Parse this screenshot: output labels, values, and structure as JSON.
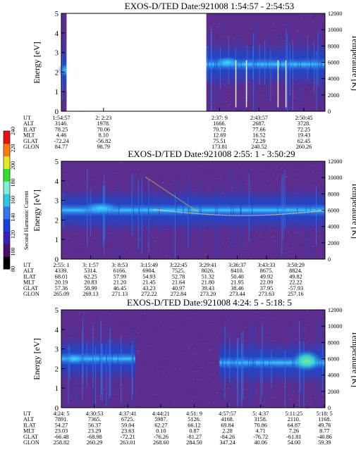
{
  "panels": [
    {
      "title": "EXOS-D/TED   Date:921008  1:54:57 - 2:54:53",
      "gap": [
        0.02,
        0.55
      ],
      "ionBand": {
        "x0": 0.0,
        "x1": 0.02,
        "e": 2.1
      },
      "rightBand": {
        "x0": 0.55,
        "x1": 1.0,
        "e": 2.4
      },
      "ticks": [
        {
          "f": 0.0,
          "lines": [
            "1:54:57",
            "3146.",
            "78.25",
            "4.46",
            "-72.24",
            "84.77"
          ]
        },
        {
          "f": 0.16,
          "lines": [
            "2: 2:23",
            "1978.",
            "70.06",
            "8.10",
            "-56.82",
            "98.79"
          ]
        },
        {
          "f": 0.6,
          "lines": [
            "2:37: 9",
            "1666.",
            "70.72",
            "12.69",
            "75.51",
            "173.81"
          ]
        },
        {
          "f": 0.75,
          "lines": [
            "2:43:57",
            "2687.",
            "77.66",
            "16.52",
            "72.29",
            "240.52"
          ]
        },
        {
          "f": 0.92,
          "lines": [
            "2:50:45",
            "3728.",
            "72.25",
            "19.43",
            "62.45",
            "260.26"
          ]
        }
      ]
    },
    {
      "title": "EXOS-D/TED   Date:921008  2:55: 1 - 3:50:29",
      "gap": null,
      "ionBand": {
        "x0": 0.0,
        "x1": 1.0,
        "e": 2.5
      },
      "rightBand": null,
      "ticks": [
        {
          "f": 0.0,
          "lines": [
            "2:55: 1",
            "4339.",
            "68.01",
            "20.19",
            "57.36",
            "265.09"
          ]
        },
        {
          "f": 0.111,
          "lines": [
            "3: 1:57",
            "5314.",
            "62.25",
            "20.83",
            "50.99",
            "269.13"
          ]
        },
        {
          "f": 0.222,
          "lines": [
            "3: 8:53",
            "6166.",
            "57.99",
            "21.20",
            "46.45",
            "271.13"
          ]
        },
        {
          "f": 0.333,
          "lines": [
            "3:15:49",
            "6904.",
            "54.93",
            "21.45",
            "43.23",
            "272.22"
          ]
        },
        {
          "f": 0.444,
          "lines": [
            "3:22:45",
            "7525.",
            "52.78",
            "21.64",
            "40.97",
            "272.84"
          ]
        },
        {
          "f": 0.556,
          "lines": [
            "3:29:41",
            "8026.",
            "51.32",
            "21.80",
            "39.43",
            "273.20"
          ]
        },
        {
          "f": 0.667,
          "lines": [
            "3:36:37",
            "8410.",
            "50.40",
            "21.95",
            "38.46",
            "273.44"
          ]
        },
        {
          "f": 0.778,
          "lines": [
            "3:43:33",
            "8675.",
            "49.92",
            "22.09",
            "37.95",
            "273.63"
          ]
        },
        {
          "f": 0.889,
          "lines": [
            "3:50:29",
            "8824.",
            "49.82",
            "22.22",
            "-57.93",
            "257.16"
          ]
        }
      ]
    },
    {
      "title": "EXOS-D/TED   Date:921008  4:24: 5 - 5:18: 5",
      "gap": null,
      "ionBand": {
        "x0": 0.0,
        "x1": 0.28,
        "e": 2.5
      },
      "rightBand": {
        "x0": 0.6,
        "x1": 1.0,
        "e": 2.3
      },
      "ticks": [
        {
          "f": 0.0,
          "lines": [
            "4:24: 5",
            "7891.",
            "54.27",
            "23.03",
            "-66.48",
            "258.82"
          ]
        },
        {
          "f": 0.126,
          "lines": [
            "4:30:53",
            "7365.",
            "56.37",
            "23.29",
            "-68.98",
            "260.29"
          ]
        },
        {
          "f": 0.252,
          "lines": [
            "4:37:41",
            "6725.",
            "59.04",
            "23.63",
            "-72.21",
            "263.01"
          ]
        },
        {
          "f": 0.378,
          "lines": [
            "4:44:21",
            "5987.",
            "62.27",
            "0.10",
            "-76.26",
            "268.60"
          ]
        },
        {
          "f": 0.504,
          "lines": [
            "4:51: 9",
            "5126.",
            "66.12",
            "0.87",
            "-81.27",
            "284.50"
          ]
        },
        {
          "f": 0.63,
          "lines": [
            "4:57:57",
            "4168.",
            "69.84",
            "2.28",
            "-84.26",
            "347.24"
          ]
        },
        {
          "f": 0.756,
          "lines": [
            "5: 4:37",
            "3158.",
            "70.86",
            "4.71",
            "-76.72",
            "40.06"
          ]
        },
        {
          "f": 0.882,
          "lines": [
            "5:11:25",
            "2110.",
            "64.87",
            "7.26",
            "-61.81",
            "54.00"
          ]
        },
        {
          "f": 0.998,
          "lines": [
            "5:18: 5",
            "1168.",
            "49.76",
            "8.77",
            "-40.86",
            "59.39"
          ]
        }
      ]
    }
  ],
  "rowLabels": [
    "UT",
    "ALT",
    "ILAT",
    "MLT",
    "GLAT",
    "GLON"
  ],
  "yLeftLabel": "Energy [eV]",
  "yRightLabel": "Temperature [K]",
  "yLeftTicks": [
    "0",
    "1",
    "2",
    "3",
    "4",
    "5"
  ],
  "yRightTicks": [
    "0",
    "2000",
    "4000",
    "6000",
    "8000",
    "10000",
    "12000"
  ],
  "colorbar": {
    "label": "Second Harmonic Current",
    "ticks": [
      "80",
      "100",
      "120",
      "140",
      "160",
      "180",
      "200",
      "220",
      "240"
    ],
    "colors": [
      "#000000",
      "#4a0f6a",
      "#3b1dbd",
      "#1a3ee0",
      "#2f7af0",
      "#2fc4e8",
      "#7ef0d0",
      "#2ee02e",
      "#e8e820",
      "#ff7a10",
      "#e81010"
    ]
  },
  "colors": {
    "background": "#5a2d8e",
    "ion": "#3be6ff",
    "mid": "#2f7af0",
    "low": "#1f46c8"
  },
  "chart_data": [
    {
      "type": "heatmap",
      "title": "EXOS-D/TED   Date:921008  1:54:57 - 2:54:53",
      "ylabel": "Energy [eV]",
      "y2label": "Temperature [K]",
      "ylim": [
        0,
        5
      ],
      "y2lim": [
        0,
        12000
      ],
      "x": [
        "1:54:57",
        "2: 2:23",
        "2:37: 9",
        "2:43:57",
        "2:50:45"
      ],
      "bright_band_energy_eV": [
        2.0,
        2.1,
        2.5,
        2.3,
        2.4
      ]
    },
    {
      "type": "heatmap",
      "title": "EXOS-D/TED   Date:921008  2:55: 1 - 3:50:29",
      "ylabel": "Energy [eV]",
      "y2label": "Temperature [K]",
      "ylim": [
        0,
        5
      ],
      "y2lim": [
        0,
        12000
      ],
      "x": [
        "2:55: 1",
        "3: 1:57",
        "3: 8:53",
        "3:15:49",
        "3:22:45",
        "3:29:41",
        "3:36:37",
        "3:43:33",
        "3:50:29"
      ],
      "bright_band_energy_eV": [
        2.6,
        2.7,
        2.9,
        2.6,
        2.5,
        2.4,
        2.4,
        2.4,
        2.5
      ]
    },
    {
      "type": "heatmap",
      "title": "EXOS-D/TED   Date:921008  4:24: 5 - 5:18: 5",
      "ylabel": "Energy [eV]",
      "y2label": "Temperature [K]",
      "ylim": [
        0,
        5
      ],
      "y2lim": [
        0,
        12000
      ],
      "x": [
        "4:24: 5",
        "4:30:53",
        "4:37:41",
        "4:44:21",
        "4:51: 9",
        "4:57:57",
        "5: 4:37",
        "5:11:25",
        "5:18: 5"
      ],
      "bright_band_energy_eV": [
        2.6,
        2.5,
        2.4,
        2.5,
        2.5,
        2.4,
        2.3,
        2.5,
        2.4
      ]
    }
  ]
}
